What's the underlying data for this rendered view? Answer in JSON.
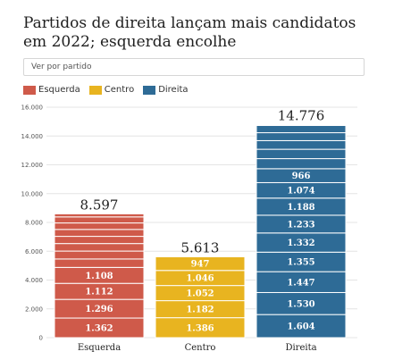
{
  "title": "Partidos de direita lançam mais candidatos em 2022; esquerda encolhe",
  "selector_label": "Ver por partido",
  "legend": [
    {
      "label": "Esquerda",
      "color": "#cf5a4a"
    },
    {
      "label": "Centro",
      "color": "#e8b420"
    },
    {
      "label": "Direita",
      "color": "#2e6b96"
    }
  ],
  "chart_data": {
    "type": "bar",
    "stacked": true,
    "categories": [
      "Esquerda",
      "Centro",
      "Direita"
    ],
    "totals": [
      8597,
      5613,
      14776
    ],
    "total_labels": [
      "8.597",
      "5.613",
      "14.776"
    ],
    "ylim": [
      0,
      16000
    ],
    "yticks": [
      0,
      2000,
      4000,
      6000,
      8000,
      10000,
      12000,
      14000,
      16000
    ],
    "ytick_labels": [
      "0",
      "2.000",
      "4.000",
      "6.000",
      "8.000",
      "10.000",
      "12.000",
      "14.000",
      "16.000"
    ],
    "grid": true,
    "segments": [
      {
        "category": "Esquerda",
        "values": [
          1362,
          1296,
          1112,
          1108,
          585,
          548,
          523,
          500,
          480,
          450,
          420,
          213
        ],
        "labels": [
          "1.362",
          "1.296",
          "1.112",
          "1.108",
          "",
          "",
          "",
          "",
          "",
          "",
          "",
          ""
        ]
      },
      {
        "category": "Centro",
        "values": [
          1386,
          1182,
          1052,
          1046,
          947
        ],
        "labels": [
          "1.386",
          "1.182",
          "1.052",
          "1.046",
          "947"
        ]
      },
      {
        "category": "Direita",
        "values": [
          1604,
          1530,
          1447,
          1355,
          1332,
          1233,
          1188,
          1074,
          966,
          700,
          650,
          600,
          550,
          500,
          47
        ],
        "labels": [
          "1.604",
          "1.530",
          "1.447",
          "1.355",
          "1.332",
          "1.233",
          "1.188",
          "1.074",
          "966",
          "",
          "",
          "",
          "",
          "",
          ""
        ]
      }
    ]
  }
}
